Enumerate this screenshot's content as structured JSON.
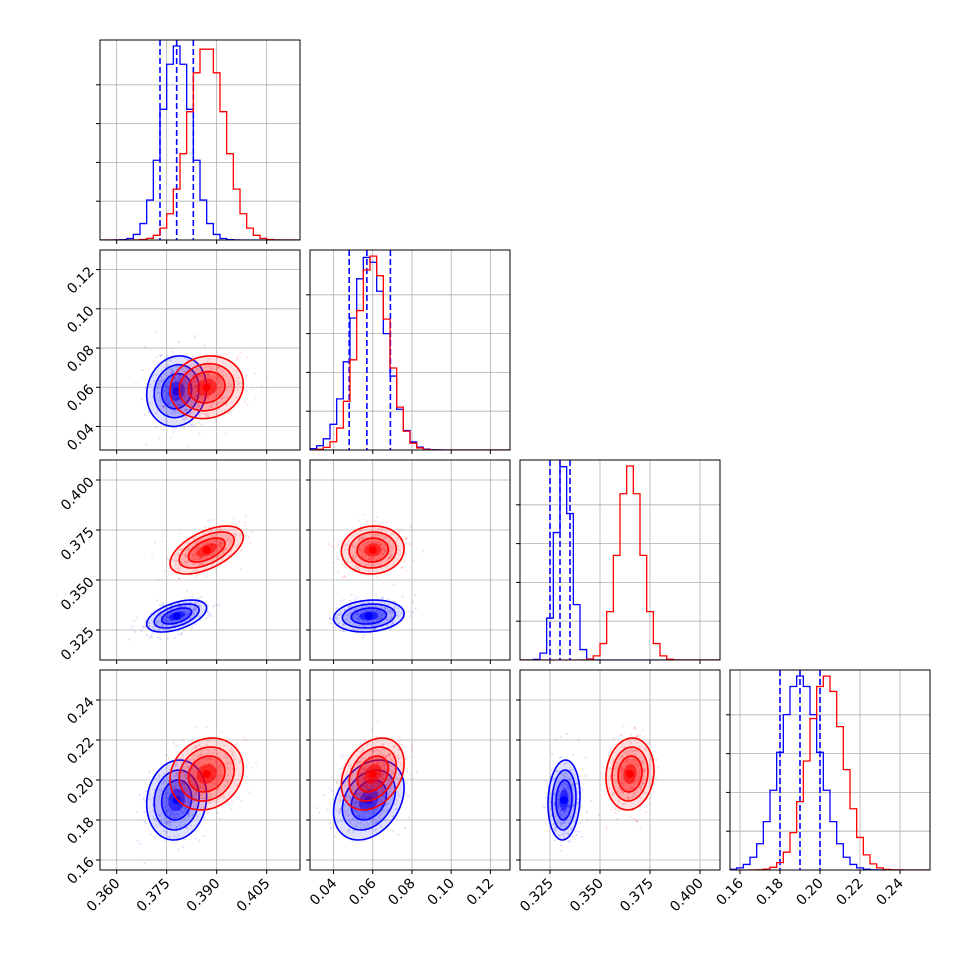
{
  "colors": {
    "series_a": "#0000ff",
    "series_b": "#ff0000",
    "grid": "#b0b0b0",
    "axis": "#000000"
  },
  "chart_data": {
    "type": "corner",
    "params": [
      {
        "range": [
          0.355,
          0.415
        ],
        "ticks": [
          0.36,
          0.375,
          0.39,
          0.405
        ],
        "tick_labels": [
          "0.360",
          "0.375",
          "0.390",
          "0.405"
        ]
      },
      {
        "range": [
          0.028,
          0.13
        ],
        "ticks": [
          0.04,
          0.06,
          0.08,
          0.1,
          0.12
        ],
        "tick_labels": [
          "0.04",
          "0.06",
          "0.08",
          "0.10",
          "0.12"
        ]
      },
      {
        "range": [
          0.31,
          0.41
        ],
        "ticks": [
          0.325,
          0.35,
          0.375,
          0.4
        ],
        "tick_labels": [
          "0.325",
          "0.350",
          "0.375",
          "0.400"
        ]
      },
      {
        "range": [
          0.155,
          0.255
        ],
        "ticks": [
          0.16,
          0.18,
          0.2,
          0.22,
          0.24
        ],
        "tick_labels": [
          "0.16",
          "0.18",
          "0.20",
          "0.22",
          "0.24"
        ]
      }
    ],
    "grid": true,
    "series": [
      {
        "color": "#0000ff",
        "mean": [
          0.378,
          0.058,
          0.332,
          0.19
        ],
        "sd": [
          0.0045,
          0.009,
          0.004,
          0.01
        ],
        "quantiles": [
          [
            0.373,
            0.378,
            0.383
          ],
          [
            0.048,
            0.057,
            0.069
          ],
          [
            0.325,
            0.33,
            0.335
          ],
          [
            0.18,
            0.19,
            0.2
          ]
        ],
        "correlations": {
          "1-0": 0.1,
          "2-0": 0.5,
          "2-1": 0.15,
          "3-0": 0.1,
          "3-1": 0.3,
          "3-2": 0.1
        }
      },
      {
        "color": "#ff0000",
        "mean": [
          0.387,
          0.06,
          0.365,
          0.203
        ],
        "sd": [
          0.0055,
          0.008,
          0.006,
          0.009
        ],
        "quantiles": [],
        "correlations": {
          "1-0": 0.1,
          "2-0": 0.55,
          "2-1": 0.05,
          "3-0": 0.15,
          "3-1": 0.3,
          "3-2": 0.1
        }
      }
    ]
  }
}
